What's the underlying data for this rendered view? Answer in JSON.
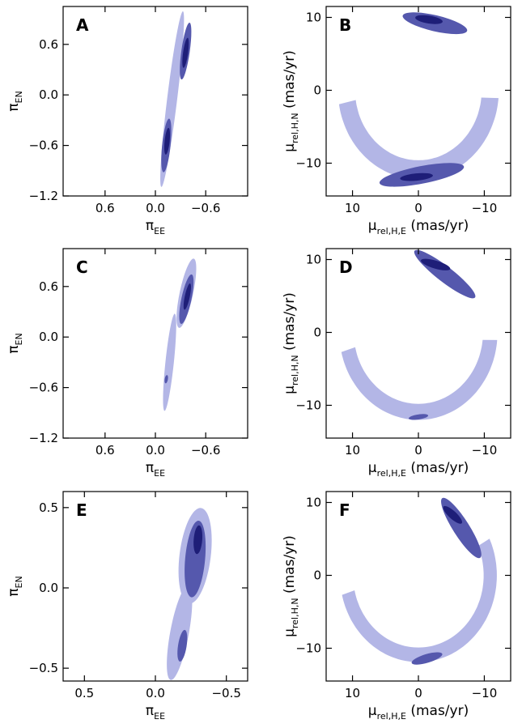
{
  "figure": {
    "colors": {
      "level1": "#b3b6e6",
      "level2": "#5558ad",
      "level3": "#1e1e78",
      "frame": "#000000"
    },
    "contour_levels": [
      "1-sigma",
      "2-sigma",
      "3-sigma"
    ]
  },
  "chart_data": [
    {
      "type": "contour",
      "panel": "A",
      "title": "A",
      "xlabel": "π_EE",
      "ylabel": "π_EN",
      "xlim": [
        1.1,
        -1.1
      ],
      "ylim": [
        -1.2,
        1.05
      ],
      "xticks": [
        0.6,
        0.0,
        -0.6
      ],
      "xtick_labels": [
        "0.6",
        "0.0",
        "−0.6"
      ],
      "yticks": [
        -1.2,
        -0.6,
        0.0,
        0.6
      ],
      "ytick_labels": [
        "−1.2",
        "−0.6",
        "0.0",
        "0.6"
      ],
      "regions": [
        {
          "level": 1,
          "center": [
            -0.2,
            -0.05
          ],
          "half_length": 1.05,
          "half_width": 0.06,
          "angle_deg": 83
        },
        {
          "level": 2,
          "center": [
            -0.36,
            0.52
          ],
          "half_length": 0.34,
          "half_width": 0.05,
          "angle_deg": 82
        },
        {
          "level": 2,
          "center": [
            -0.13,
            -0.6
          ],
          "half_length": 0.32,
          "half_width": 0.05,
          "angle_deg": 84
        },
        {
          "level": 3,
          "center": [
            -0.36,
            0.5
          ],
          "half_length": 0.18,
          "half_width": 0.03,
          "angle_deg": 82
        },
        {
          "level": 3,
          "center": [
            -0.14,
            -0.55
          ],
          "half_length": 0.16,
          "half_width": 0.03,
          "angle_deg": 84
        }
      ]
    },
    {
      "type": "contour",
      "panel": "B",
      "title": "B",
      "xlabel": "μ_rel,H,E (mas/yr)",
      "ylabel": "μ_rel,H,N (mas/yr)",
      "xlim": [
        14,
        -14
      ],
      "ylim": [
        -14.5,
        11.5
      ],
      "xticks": [
        10,
        0,
        -10
      ],
      "xtick_labels": [
        "10",
        "0",
        "−10"
      ],
      "yticks": [
        -10,
        0,
        10
      ],
      "ytick_labels": [
        "−10",
        "0",
        "10"
      ],
      "arc": {
        "radius": 10.9,
        "width_level1": 2.6,
        "start_deg": 95,
        "end_deg": 262
      },
      "regions": [
        {
          "level": 2,
          "center": [
            -2.5,
            9.2
          ],
          "half_length": 5.0,
          "half_width": 1.1,
          "angle_deg": -12
        },
        {
          "level": 2,
          "center": [
            -0.5,
            -11.6
          ],
          "half_length": 6.5,
          "half_width": 1.2,
          "angle_deg": 10
        },
        {
          "level": 3,
          "center": [
            -1.6,
            9.7
          ],
          "half_length": 2.1,
          "half_width": 0.55,
          "angle_deg": -8
        },
        {
          "level": 3,
          "center": [
            0.3,
            -11.9
          ],
          "half_length": 2.5,
          "half_width": 0.5,
          "angle_deg": 5
        }
      ]
    },
    {
      "type": "contour",
      "panel": "C",
      "title": "C",
      "xlabel": "π_EE",
      "ylabel": "π_EN",
      "xlim": [
        1.1,
        -1.1
      ],
      "ylim": [
        -1.2,
        1.05
      ],
      "xticks": [
        0.6,
        0.0,
        -0.6
      ],
      "xtick_labels": [
        "0.6",
        "0.0",
        "−0.6"
      ],
      "yticks": [
        -1.2,
        -0.6,
        0.0,
        0.6
      ],
      "ytick_labels": [
        "−1.2",
        "−0.6",
        "0.0",
        "0.6"
      ],
      "regions": [
        {
          "level": 1,
          "center": [
            -0.37,
            0.52
          ],
          "half_length": 0.42,
          "half_width": 0.08,
          "angle_deg": 78
        },
        {
          "level": 1,
          "center": [
            -0.17,
            -0.3
          ],
          "half_length": 0.58,
          "half_width": 0.05,
          "angle_deg": 84
        },
        {
          "level": 2,
          "center": [
            -0.37,
            0.45
          ],
          "half_length": 0.3,
          "half_width": 0.06,
          "angle_deg": 78
        },
        {
          "level": 2,
          "center": [
            -0.13,
            -0.5
          ],
          "half_length": 0.05,
          "half_width": 0.015,
          "angle_deg": 80
        },
        {
          "level": 3,
          "center": [
            -0.38,
            0.48
          ],
          "half_length": 0.16,
          "half_width": 0.03,
          "angle_deg": 78
        }
      ]
    },
    {
      "type": "contour",
      "panel": "D",
      "title": "D",
      "xlabel": "μ_rel,H,E (mas/yr)",
      "ylabel": "μ_rel,H,N (mas/yr)",
      "xlim": [
        14,
        -14
      ],
      "ylim": [
        -14.5,
        11.5
      ],
      "xticks": [
        10,
        0,
        -10
      ],
      "xtick_labels": [
        "10",
        "0",
        "−10"
      ],
      "yticks": [
        -10,
        0,
        10
      ],
      "ytick_labels": [
        "−10",
        "0",
        "10"
      ],
      "arc": {
        "radius": 10.9,
        "width_level1": 2.2,
        "start_deg": 95,
        "end_deg": 258
      },
      "regions": [
        {
          "level": 2,
          "center": [
            -4.0,
            8.0
          ],
          "half_length": 5.6,
          "half_width": 1.1,
          "angle_deg": -35
        },
        {
          "level": 3,
          "center": [
            -2.6,
            9.3
          ],
          "half_length": 2.3,
          "half_width": 0.55,
          "angle_deg": -15
        },
        {
          "level": 2,
          "center": [
            0.0,
            -11.6
          ],
          "half_length": 1.5,
          "half_width": 0.35,
          "angle_deg": 8
        }
      ]
    },
    {
      "type": "contour",
      "panel": "E",
      "title": "E",
      "xlabel": "π_EE",
      "ylabel": "π_EN",
      "xlim": [
        0.65,
        -0.65
      ],
      "ylim": [
        -0.58,
        0.6
      ],
      "xticks": [
        0.5,
        0.0,
        -0.5
      ],
      "xtick_labels": [
        "0.5",
        "0.0",
        "−0.5"
      ],
      "yticks": [
        -0.5,
        0.0,
        0.5
      ],
      "ytick_labels": [
        "−0.5",
        "0.0",
        "0.5"
      ],
      "regions": [
        {
          "level": 1,
          "center": [
            -0.28,
            0.2
          ],
          "half_length": 0.3,
          "half_width": 0.11,
          "angle_deg": 82
        },
        {
          "level": 1,
          "center": [
            -0.17,
            -0.28
          ],
          "half_length": 0.3,
          "half_width": 0.065,
          "angle_deg": 78
        },
        {
          "level": 2,
          "center": [
            -0.28,
            0.18
          ],
          "half_length": 0.24,
          "half_width": 0.07,
          "angle_deg": 84
        },
        {
          "level": 2,
          "center": [
            -0.19,
            -0.36
          ],
          "half_length": 0.1,
          "half_width": 0.03,
          "angle_deg": 80
        },
        {
          "level": 3,
          "center": [
            -0.3,
            0.3
          ],
          "half_length": 0.09,
          "half_width": 0.03,
          "angle_deg": 85
        }
      ]
    },
    {
      "type": "contour",
      "panel": "F",
      "title": "F",
      "xlabel": "μ_rel,H,E (mas/yr)",
      "ylabel": "μ_rel,H,N (mas/yr)",
      "xlim": [
        14,
        -14
      ],
      "ylim": [
        -14.5,
        11.5
      ],
      "xticks": [
        10,
        0,
        -10
      ],
      "xtick_labels": [
        "10",
        "0",
        "−10"
      ],
      "yticks": [
        -10,
        0,
        10
      ],
      "ytick_labels": [
        "−10",
        "0",
        "10"
      ],
      "arc": {
        "radius": 10.9,
        "width_level1": 2.0,
        "start_deg": 65,
        "end_deg": 258
      },
      "regions": [
        {
          "level": 2,
          "center": [
            -6.5,
            6.5
          ],
          "half_length": 5.0,
          "half_width": 1.2,
          "angle_deg": -55
        },
        {
          "level": 3,
          "center": [
            -5.2,
            8.3
          ],
          "half_length": 1.8,
          "half_width": 0.55,
          "angle_deg": -40
        },
        {
          "level": 2,
          "center": [
            -1.3,
            -11.4
          ],
          "half_length": 2.4,
          "half_width": 0.6,
          "angle_deg": 15
        }
      ]
    }
  ]
}
